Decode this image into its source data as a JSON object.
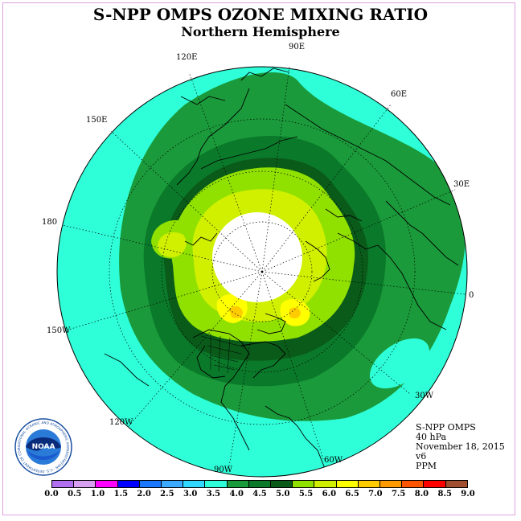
{
  "header": {
    "title": "S-NPP OMPS OZONE MIXING RATIO",
    "subtitle": "Northern Hemisphere"
  },
  "longitude_labels": {
    "lon_120e": "120E",
    "lon_90e": "90E",
    "lon_60e": "60E",
    "lon_30e": "30E",
    "lon_0": "0",
    "lon_30w": "30W",
    "lon_60w": "60W",
    "lon_90w": "90W",
    "lon_120w": "120W",
    "lon_150w": "150W",
    "lon_180": "180",
    "lon_150e": "150E"
  },
  "info": {
    "instrument": "S-NPP OMPS",
    "level": "40 hPa",
    "date": "November 18, 2015",
    "version": "v6",
    "units": "PPM"
  },
  "logo": {
    "text": "NOAA",
    "ring_text": "NATIONAL OCEANIC AND ATMOSPHERIC ADMINISTRATION · U.S. DEPARTMENT OF COMMERCE"
  },
  "colorbar": {
    "colors": [
      "#b070f0",
      "#d8a0f0",
      "#ff00ff",
      "#0000ff",
      "#1a78ff",
      "#3caaff",
      "#30d8ff",
      "#2effd8",
      "#1a9a3a",
      "#0a7a2a",
      "#0a5a1a",
      "#90e000",
      "#d0f000",
      "#ffff00",
      "#ffcc00",
      "#ff9900",
      "#ff5500",
      "#ff0000",
      "#a05030"
    ],
    "ticks": [
      "0.0",
      "0.5",
      "1.0",
      "1.5",
      "2.0",
      "2.5",
      "3.0",
      "3.5",
      "4.0",
      "4.5",
      "5.0",
      "5.5",
      "6.0",
      "6.5",
      "7.0",
      "7.5",
      "8.0",
      "8.5",
      "9.0"
    ]
  }
}
